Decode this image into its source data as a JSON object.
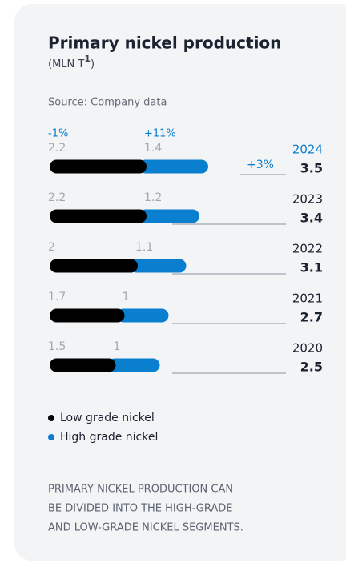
{
  "chart_data": {
    "type": "bar",
    "title": "Primary nickel production",
    "subtitle_parts": [
      "(MLN T",
      "1",
      ")"
    ],
    "source": "Source: Company data",
    "categories": [
      "2024",
      "2023",
      "2022",
      "2021",
      "2020"
    ],
    "series": [
      {
        "name": "Low grade nickel",
        "color": "#000000",
        "values": [
          2.2,
          2.2,
          2.0,
          1.7,
          1.5
        ]
      },
      {
        "name": "High grade nickel",
        "color": "#0a7fcf",
        "values": [
          1.4,
          1.2,
          1.1,
          1.0,
          1.0
        ]
      }
    ],
    "totals": [
      3.5,
      3.4,
      3.1,
      2.7,
      2.5
    ],
    "annotations": [
      "-1%",
      "+11%",
      "+3%"
    ],
    "note": [
      "PRIMARY NICKEL PRODUCTION CAN",
      "BE DIVIDED INTO THE HIGH-GRADE",
      "AND LOW-GRADE NICKEL SEGMENTS."
    ]
  }
}
